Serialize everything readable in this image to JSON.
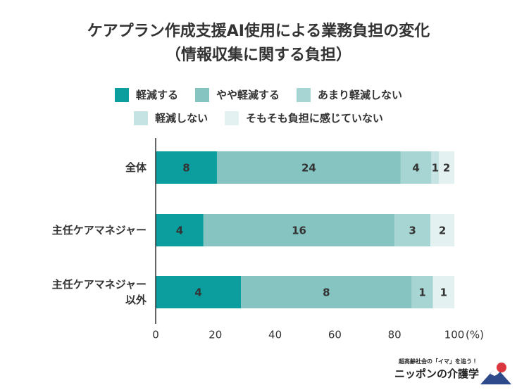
{
  "chart_data": {
    "type": "bar",
    "orientation": "horizontal",
    "stack": "percent",
    "title": "ケアプラン作成支援AI使用による業務負担の変化",
    "subtitle": "（情報収集に関する負担）",
    "categories": [
      "全体",
      "主任ケアマネジャー",
      "主任ケアマネジャー\n以外"
    ],
    "series": [
      {
        "name": "軽減する",
        "color": "#0c9d9e",
        "values": [
          8,
          4,
          4
        ]
      },
      {
        "name": "やや軽減する",
        "color": "#86c4c2",
        "values": [
          24,
          16,
          8
        ]
      },
      {
        "name": "あまり軽減しない",
        "color": "#a7d5d3",
        "values": [
          4,
          3,
          1
        ]
      },
      {
        "name": "軽減しない",
        "color": "#c5e3e2",
        "values": [
          1,
          null,
          null
        ]
      },
      {
        "name": "そもそも負担に感じていない",
        "color": "#e3f1f1",
        "values": [
          2,
          2,
          1
        ]
      }
    ],
    "xlim": [
      0,
      100
    ],
    "xticks": [
      0,
      20,
      40,
      60,
      80,
      100
    ],
    "xlabel": "(%)",
    "grid": false,
    "logo": {
      "tagline": "超高齢社会の「イマ」を追う！",
      "name": "ニッポンの介護学"
    }
  }
}
